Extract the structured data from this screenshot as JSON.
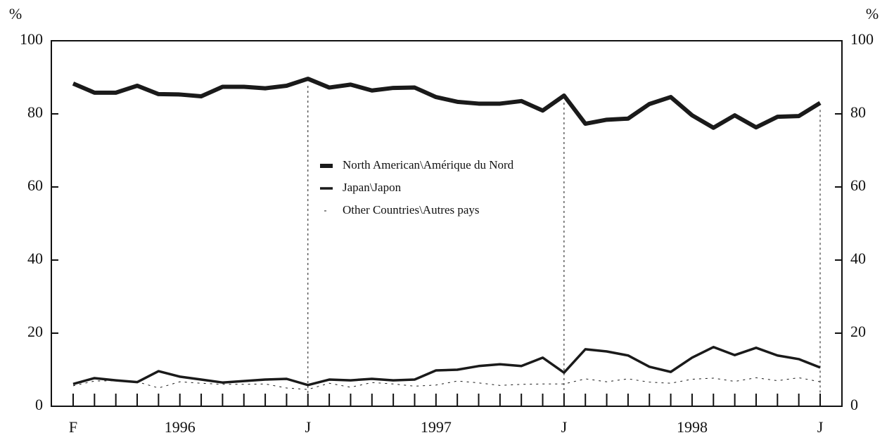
{
  "chart_data": {
    "type": "line",
    "y_axis_label": "%",
    "y2_axis_label": "%",
    "categories": [
      "F",
      null,
      null,
      null,
      null,
      "1996",
      null,
      null,
      null,
      null,
      null,
      "J",
      null,
      null,
      null,
      null,
      null,
      "1997",
      null,
      null,
      null,
      null,
      null,
      "J",
      null,
      null,
      null,
      null,
      null,
      "1998",
      null,
      null,
      null,
      null,
      null,
      "J"
    ],
    "ylim": [
      0,
      100
    ],
    "yticks": [
      0,
      20,
      40,
      60,
      80,
      100
    ],
    "y2lim": [
      0,
      100
    ],
    "y2ticks": [
      0,
      20,
      40,
      60,
      80,
      100
    ],
    "legend": "center",
    "series": [
      {
        "name": "North American\\Amérique du Nord",
        "color": "#1a1a1a",
        "linewidth": 6,
        "dashed": false,
        "values": [
          88.3,
          85.8,
          85.8,
          87.7,
          85.4,
          85.3,
          84.8,
          87.4,
          87.4,
          87.0,
          87.7,
          89.6,
          87.2,
          88.0,
          86.4,
          87.1,
          87.2,
          84.6,
          83.3,
          82.8,
          82.8,
          83.5,
          80.9,
          85.0,
          77.3,
          78.4,
          78.7,
          82.7,
          84.6,
          79.6,
          76.2,
          79.6,
          76.3,
          79.2,
          79.4,
          83.0
        ]
      },
      {
        "name": "Japan\\Japon",
        "color": "#1a1a1a",
        "linewidth": 3.5,
        "dashed": false,
        "values": [
          6.1,
          7.7,
          7.1,
          6.6,
          9.6,
          8.1,
          7.3,
          6.5,
          6.9,
          7.3,
          7.5,
          5.8,
          7.3,
          7.1,
          7.5,
          7.1,
          7.3,
          9.8,
          10.0,
          11.0,
          11.5,
          11.0,
          13.3,
          9.2,
          15.6,
          15.0,
          13.9,
          10.8,
          9.4,
          13.3,
          16.2,
          14.0,
          16.0,
          13.9,
          12.9,
          10.6
        ]
      },
      {
        "name": "Other Countries\\Autres pays",
        "color": "#1a1a1a",
        "linewidth": 1,
        "dashed": true,
        "values": [
          5.6,
          6.9,
          7.0,
          6.7,
          5.0,
          6.7,
          6.3,
          6.0,
          6.0,
          6.1,
          5.0,
          4.6,
          6.3,
          5.2,
          6.5,
          6.1,
          5.5,
          5.8,
          6.9,
          6.4,
          5.7,
          6.0,
          6.1,
          6.1,
          7.5,
          6.7,
          7.5,
          6.6,
          6.3,
          7.4,
          7.7,
          6.8,
          7.8,
          7.0,
          7.8,
          6.7
        ]
      }
    ]
  }
}
